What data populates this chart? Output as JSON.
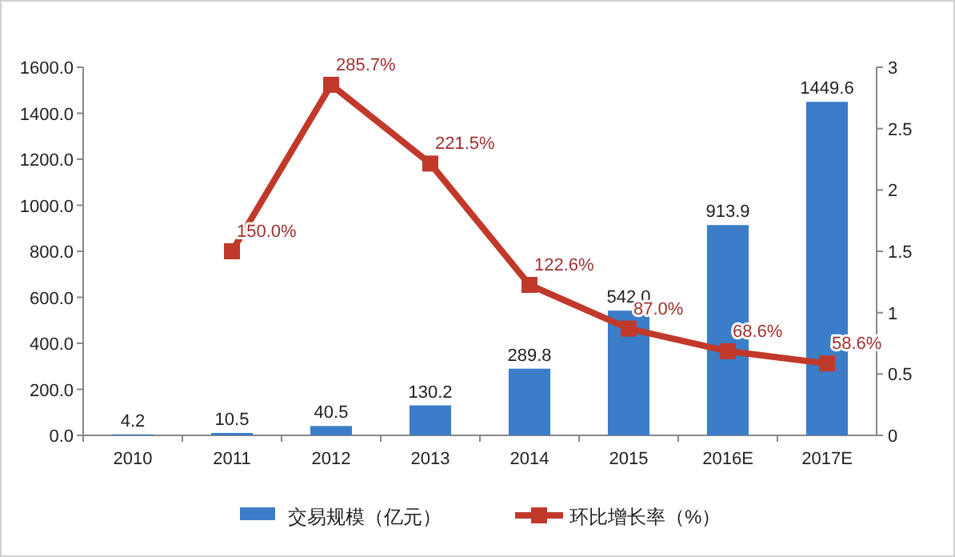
{
  "chart_data": {
    "type": "bar",
    "categories": [
      "2010",
      "2011",
      "2012",
      "2013",
      "2014",
      "2015",
      "2016E",
      "2017E"
    ],
    "series": [
      {
        "name": "交易规模（亿元）",
        "color": "#3b7dc8",
        "values": [
          4.2,
          10.5,
          40.5,
          130.2,
          289.8,
          542.0,
          913.9,
          1449.6
        ],
        "value_labels": [
          "4.2",
          "10.5",
          "40.5",
          "130.2",
          "289.8",
          "542.0",
          "913.9",
          "1449.6"
        ]
      },
      {
        "name": "环比增长率（%）",
        "type": "line",
        "axis": "y2",
        "color": "#c0392b",
        "marker": "square",
        "line_style": "solid",
        "values": [
          null,
          1.5,
          2.857,
          2.215,
          1.226,
          0.87,
          0.686,
          0.586
        ],
        "value_labels": [
          null,
          "150.0%",
          "285.7%",
          "221.5%",
          "122.6%",
          "87.0%",
          "68.6%",
          "58.6%"
        ]
      }
    ],
    "ylim": [
      0,
      1600
    ],
    "yticks": [
      {
        "value": 0,
        "label": "0.0"
      },
      {
        "value": 200,
        "label": "200.0"
      },
      {
        "value": 400,
        "label": "400.0"
      },
      {
        "value": 600,
        "label": "600.0"
      },
      {
        "value": 800,
        "label": "800.0"
      },
      {
        "value": 1000,
        "label": "1000.0"
      },
      {
        "value": 1200,
        "label": "1200.0"
      },
      {
        "value": 1400,
        "label": "1400.0"
      },
      {
        "value": 1600,
        "label": "1600.0"
      }
    ],
    "y2lim": [
      0,
      3
    ],
    "y2ticks": [
      0,
      0.5,
      1,
      1.5,
      2,
      2.5,
      3
    ],
    "legend": "bottom"
  }
}
